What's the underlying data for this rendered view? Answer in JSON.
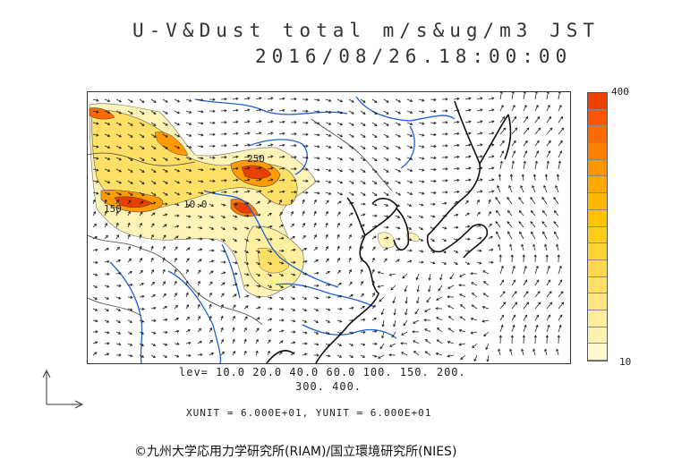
{
  "title": {
    "line1": "U-V&Dust total m/s&ug/m3 JST",
    "line2": "2016/08/26.18:00:00"
  },
  "colorbar": {
    "max_label": "400",
    "min_label": "10",
    "colors": [
      "#fff8d0",
      "#fff2b0",
      "#ffee99",
      "#ffe680",
      "#ffe066",
      "#ffd84d",
      "#ffd233",
      "#ffcc1a",
      "#ffc400",
      "#ffb800",
      "#ffa800",
      "#ff9600",
      "#ff8000",
      "#ff6a00",
      "#ff5500",
      "#f04000"
    ]
  },
  "levels": {
    "line1": "lev= 10.0 20.0 40.0 60.0 100. 150. 200.",
    "line2": "300. 400."
  },
  "units": "XUNIT = 6.000E+01, YUNIT = 6.000E+01",
  "contour_labels": [
    "150",
    "250",
    "10.0"
  ],
  "copyright": "©九州大学応用力学研究所(RIAM)/国立環境研究所(NIES)"
}
